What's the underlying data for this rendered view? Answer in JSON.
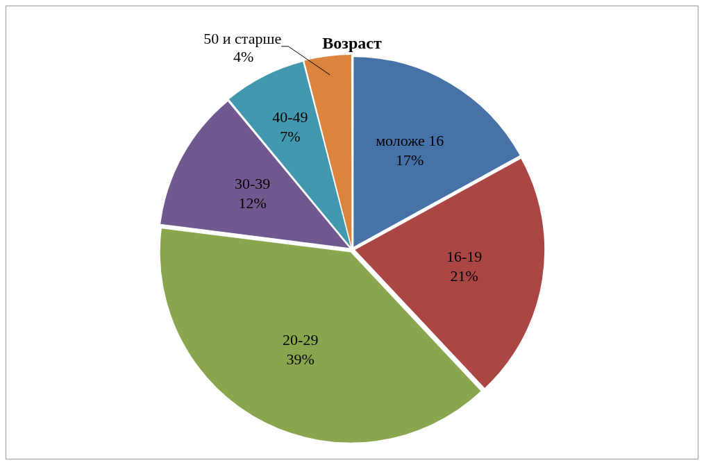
{
  "chart_data": {
    "type": "pie",
    "title": "Возраст",
    "categories": [
      "моложе 16",
      "16-19",
      "20-29",
      "30-39",
      "40-49",
      "50 и старше"
    ],
    "values": [
      17,
      21,
      39,
      12,
      7,
      4
    ],
    "value_labels": [
      "17%",
      "21%",
      "39%",
      "12%",
      "7%",
      "4%"
    ],
    "colors": [
      "#4672a8",
      "#aa4644",
      "#89a54e",
      "#71588f",
      "#4298af",
      "#db843d"
    ],
    "legend": false
  }
}
